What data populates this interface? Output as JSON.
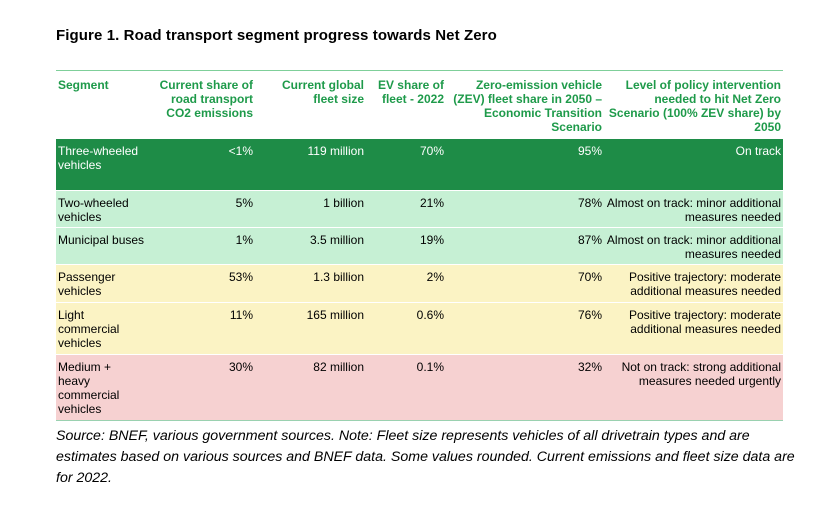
{
  "title": "Figure 1. Road transport segment progress towards Net Zero",
  "table": {
    "headers": [
      "Segment",
      "Current share of road transport CO2 emissions",
      "Current global fleet size",
      "EV share of fleet - 2022",
      "Zero-emission vehicle (ZEV) fleet share in 2050 – Economic Transition Scenario",
      "Level of policy intervention needed to hit Net Zero Scenario (100% ZEV share) by 2050"
    ],
    "rows": [
      {
        "status": "On track",
        "color": "#1e8c47",
        "cells": [
          "Three-wheeled vehicles",
          "<1%",
          "119 million",
          "70%",
          "95%",
          "On track"
        ]
      },
      {
        "status": "Almost on track",
        "color": "#c6f0d4",
        "cells": [
          "Two-wheeled vehicles",
          "5%",
          "1 billion",
          "21%",
          "78%",
          "Almost on track: minor additional measures needed"
        ]
      },
      {
        "status": "Almost on track",
        "color": "#c6f0d4",
        "cells": [
          "Municipal buses",
          "1%",
          "3.5 million",
          "19%",
          "87%",
          "Almost on track: minor additional measures needed"
        ]
      },
      {
        "status": "Positive trajectory",
        "color": "#fbf3c4",
        "cells": [
          "Passenger vehicles",
          "53%",
          "1.3 billion",
          "2%",
          "70%",
          "Positive trajectory: moderate additional measures needed"
        ]
      },
      {
        "status": "Positive trajectory",
        "color": "#fbf3c4",
        "cells": [
          "Light commercial vehicles",
          "11%",
          "165 million",
          "0.6%",
          "76%",
          "Positive trajectory: moderate additional measures needed"
        ]
      },
      {
        "status": "Not on track",
        "color": "#f6d1d1",
        "cells": [
          "Medium + heavy commercial vehicles",
          "30%",
          "82 million",
          "0.1%",
          "32%",
          "Not on track: strong additional measures needed urgently"
        ]
      }
    ]
  },
  "source": "Source: BNEF, various government sources. Note: Fleet size represents vehicles of all drivetrain types and are estimates based on various sources and BNEF data. Some values rounded. Current emissions and fleet size data are for 2022.",
  "colors": {
    "header_text": "#1e9a4a",
    "on_track": "#1e8c47",
    "almost_on_track": "#c6f0d4",
    "positive_trajectory": "#fbf3c4",
    "not_on_track": "#f6d1d1"
  }
}
